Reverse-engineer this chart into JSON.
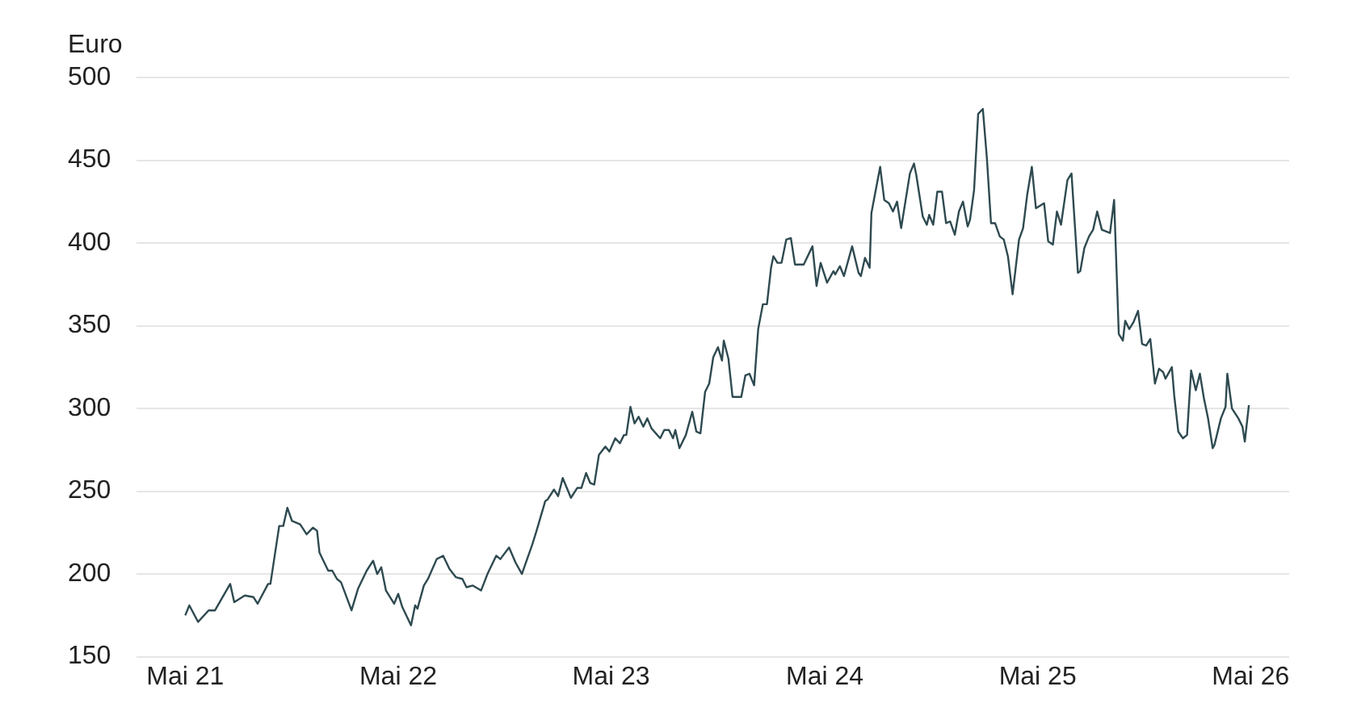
{
  "chart_data": {
    "type": "line",
    "ylabel": "Euro",
    "color": "#2e4a50",
    "grid": "y",
    "xlim": [
      "2021-02-07",
      "2026-07-06"
    ],
    "xticks": [
      {
        "value": "2021-05-01",
        "label": "Mai 21"
      },
      {
        "value": "2022-05-01",
        "label": "Mai 22"
      },
      {
        "value": "2023-05-01",
        "label": "Mai 23"
      },
      {
        "value": "2024-05-01",
        "label": "Mai 24"
      },
      {
        "value": "2025-05-01",
        "label": "Mai 25"
      },
      {
        "value": "2026-05-01",
        "label": "Mai 26"
      }
    ],
    "ylim": [
      150,
      500
    ],
    "yticks": [
      150,
      200,
      250,
      300,
      350,
      400,
      450,
      500
    ],
    "x": [
      "2021-05-01",
      "2021-05-08",
      "2021-05-23",
      "2021-06-10",
      "2021-06-21",
      "2021-07-17",
      "2021-07-24",
      "2021-08-11",
      "2021-08-26",
      "2021-09-02",
      "2021-09-20",
      "2021-09-24",
      "2021-10-09",
      "2021-10-16",
      "2021-10-23",
      "2021-10-31",
      "2021-11-14",
      "2021-11-25",
      "2021-12-06",
      "2021-12-13",
      "2021-12-17",
      "2022-01-01",
      "2022-01-08",
      "2022-01-16",
      "2022-01-23",
      "2022-02-10",
      "2022-02-21",
      "2022-03-08",
      "2022-03-19",
      "2022-03-26",
      "2022-04-02",
      "2022-04-10",
      "2022-04-24",
      "2022-05-01",
      "2022-05-08",
      "2022-05-23",
      "2022-05-30",
      "2022-06-03",
      "2022-06-14",
      "2022-06-21",
      "2022-07-06",
      "2022-07-17",
      "2022-07-28",
      "2022-08-08",
      "2022-08-19",
      "2022-08-26",
      "2022-09-06",
      "2022-09-20",
      "2022-10-01",
      "2022-10-16",
      "2022-10-23",
      "2022-11-07",
      "2022-11-18",
      "2022-11-29",
      "2022-12-02",
      "2022-12-17",
      "2022-12-24",
      "2023-01-08",
      "2023-01-12",
      "2023-01-23",
      "2023-01-30",
      "2023-02-07",
      "2023-02-21",
      "2023-03-04",
      "2023-03-11",
      "2023-03-19",
      "2023-03-26",
      "2023-04-02",
      "2023-04-10",
      "2023-04-21",
      "2023-04-28",
      "2023-05-08",
      "2023-05-16",
      "2023-05-23",
      "2023-05-27",
      "2023-06-03",
      "2023-06-10",
      "2023-06-17",
      "2023-06-25",
      "2023-07-02",
      "2023-07-09",
      "2023-07-24",
      "2023-07-31",
      "2023-08-08",
      "2023-08-15",
      "2023-08-19",
      "2023-08-26",
      "2023-09-06",
      "2023-09-17",
      "2023-09-24",
      "2023-10-01",
      "2023-10-09",
      "2023-10-16",
      "2023-10-23",
      "2023-10-31",
      "2023-11-07",
      "2023-11-10",
      "2023-11-18",
      "2023-11-25",
      "2023-12-10",
      "2023-12-17",
      "2023-12-24",
      "2024-01-01",
      "2024-01-08",
      "2024-01-16",
      "2024-01-23",
      "2024-01-30",
      "2024-02-03",
      "2024-02-10",
      "2024-02-17",
      "2024-02-25",
      "2024-03-04",
      "2024-03-11",
      "2024-03-26",
      "2024-04-10",
      "2024-04-17",
      "2024-04-24",
      "2024-05-05",
      "2024-05-16",
      "2024-05-19",
      "2024-05-27",
      "2024-06-03",
      "2024-06-17",
      "2024-06-28",
      "2024-07-02",
      "2024-07-09",
      "2024-07-17",
      "2024-07-20",
      "2024-08-04",
      "2024-08-11",
      "2024-08-19",
      "2024-08-26",
      "2024-09-02",
      "2024-09-09",
      "2024-09-24",
      "2024-10-01",
      "2024-10-05",
      "2024-10-16",
      "2024-10-23",
      "2024-10-27",
      "2024-11-03",
      "2024-11-10",
      "2024-11-18",
      "2024-11-25",
      "2024-12-02",
      "2024-12-10",
      "2024-12-17",
      "2024-12-24",
      "2025-01-01",
      "2025-01-05",
      "2025-01-12",
      "2025-01-19",
      "2025-01-27",
      "2025-02-03",
      "2025-02-10",
      "2025-02-17",
      "2025-02-25",
      "2025-03-04",
      "2025-03-11",
      "2025-03-19",
      "2025-03-30",
      "2025-04-06",
      "2025-04-13",
      "2025-04-21",
      "2025-04-28",
      "2025-05-12",
      "2025-05-19",
      "2025-05-27",
      "2025-06-03",
      "2025-06-10",
      "2025-06-21",
      "2025-06-28",
      "2025-07-09",
      "2025-07-13",
      "2025-07-20",
      "2025-07-28",
      "2025-08-04",
      "2025-08-11",
      "2025-08-19",
      "2025-08-26",
      "2025-09-02",
      "2025-09-09",
      "2025-09-17",
      "2025-09-24",
      "2025-09-28",
      "2025-10-05",
      "2025-10-12",
      "2025-10-20",
      "2025-10-27",
      "2025-11-03",
      "2025-11-10",
      "2025-11-18",
      "2025-11-25",
      "2025-12-02",
      "2025-12-06",
      "2025-12-17",
      "2025-12-21",
      "2025-12-28",
      "2026-01-05",
      "2026-01-12",
      "2026-01-19",
      "2026-01-27",
      "2026-02-03",
      "2026-02-10",
      "2026-02-17",
      "2026-02-25",
      "2026-02-28",
      "2026-03-11",
      "2026-03-19",
      "2026-03-22",
      "2026-03-30",
      "2026-04-10",
      "2026-04-17",
      "2026-04-21",
      "2026-04-28"
    ],
    "values": [
      175,
      181,
      171,
      178,
      178,
      194,
      183,
      187,
      186,
      182,
      194,
      194,
      229,
      229,
      240,
      232,
      230,
      224,
      228,
      226,
      213,
      202,
      202,
      197,
      195,
      178,
      191,
      202,
      208,
      200,
      204,
      190,
      182,
      188,
      180,
      169,
      181,
      179,
      193,
      197,
      209,
      211,
      203,
      198,
      197,
      192,
      193,
      190,
      200,
      211,
      209,
      216,
      207,
      200,
      203,
      218,
      226,
      244,
      245,
      251,
      247,
      258,
      246,
      252,
      252,
      261,
      255,
      254,
      272,
      277,
      274,
      282,
      279,
      284,
      284,
      301,
      291,
      295,
      289,
      294,
      288,
      282,
      287,
      287,
      282,
      287,
      276,
      284,
      298,
      286,
      285,
      310,
      315,
      331,
      337,
      329,
      341,
      330,
      307,
      307,
      320,
      321,
      314,
      348,
      363,
      363,
      385,
      392,
      388,
      388,
      402,
      403,
      387,
      387,
      398,
      374,
      388,
      376,
      383,
      381,
      386,
      380,
      398,
      382,
      380,
      391,
      385,
      418,
      446,
      426,
      424,
      419,
      425,
      409,
      442,
      448,
      441,
      416,
      411,
      417,
      411,
      431,
      431,
      412,
      413,
      405,
      419,
      425,
      410,
      414,
      432,
      478,
      481,
      451,
      412,
      412,
      404,
      402,
      392,
      369,
      402,
      409,
      429,
      446,
      421,
      424,
      401,
      399,
      419,
      411,
      438,
      442,
      382,
      383,
      397,
      404,
      408,
      419,
      408,
      407,
      406,
      426,
      345,
      341,
      353,
      348,
      352,
      359,
      339,
      338,
      342,
      315,
      324,
      322,
      318,
      325,
      308,
      286,
      282,
      284,
      323,
      311,
      321,
      306,
      294,
      276,
      278,
      294,
      301,
      321,
      300,
      294,
      289,
      280,
      302
    ]
  }
}
